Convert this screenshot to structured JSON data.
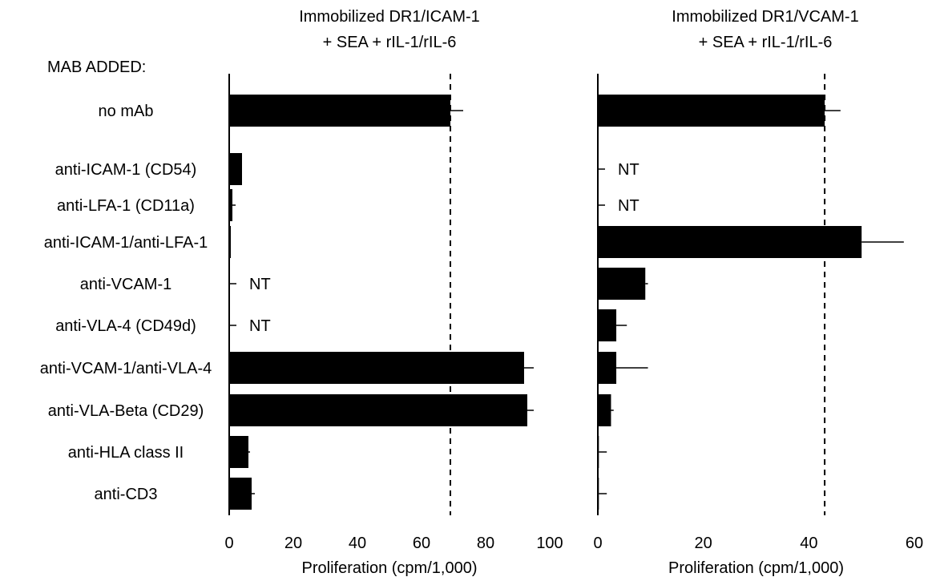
{
  "header_label": "MAB ADDED:",
  "categories": [
    "no mAb",
    "anti-ICAM-1 (CD54)",
    "anti-LFA-1 (CD11a)",
    "anti-ICAM-1/anti-LFA-1",
    "anti-VCAM-1",
    "anti-VLA-4 (CD49d)",
    "anti-VCAM-1/anti-VLA-4",
    "anti-VLA-Beta (CD29)",
    "anti-HLA class II",
    "anti-CD3"
  ],
  "colors": {
    "bar": "#000000",
    "axis": "#000000"
  },
  "chart_data": [
    {
      "type": "bar",
      "orientation": "horizontal",
      "title": "Immobilized DR1/ICAM-1\n+ SEA + rIL-1/rIL-6",
      "xlabel": "Proliferation (cpm/1,000)",
      "xlim": [
        0,
        100
      ],
      "xticks": [
        0,
        20,
        40,
        60,
        80,
        100
      ],
      "reference_line": 69,
      "values": [
        69,
        4,
        1,
        0.5,
        null,
        null,
        92,
        93,
        6,
        7
      ],
      "errors": [
        4,
        0,
        1,
        0,
        null,
        null,
        3,
        2,
        0.5,
        1
      ],
      "value_labels": [
        "",
        "",
        "",
        "",
        "NT",
        "NT",
        "",
        "",
        "",
        ""
      ]
    },
    {
      "type": "bar",
      "orientation": "horizontal",
      "title": "Immobilized DR1/VCAM-1\n+ SEA + rIL-1/rIL-6",
      "xlabel": "Proliferation (cpm/1,000)",
      "xlim": [
        0,
        60
      ],
      "xticks": [
        0,
        20,
        40,
        60
      ],
      "reference_line": 43,
      "values": [
        43,
        null,
        null,
        50,
        9,
        3.5,
        3.5,
        2.5,
        0.2,
        0.2
      ],
      "errors": [
        3,
        null,
        null,
        8,
        0.5,
        2,
        6,
        0.5,
        1.5,
        1.5
      ],
      "value_labels": [
        "",
        "NT",
        "NT",
        "",
        "",
        "",
        "",
        "",
        "",
        ""
      ]
    }
  ]
}
